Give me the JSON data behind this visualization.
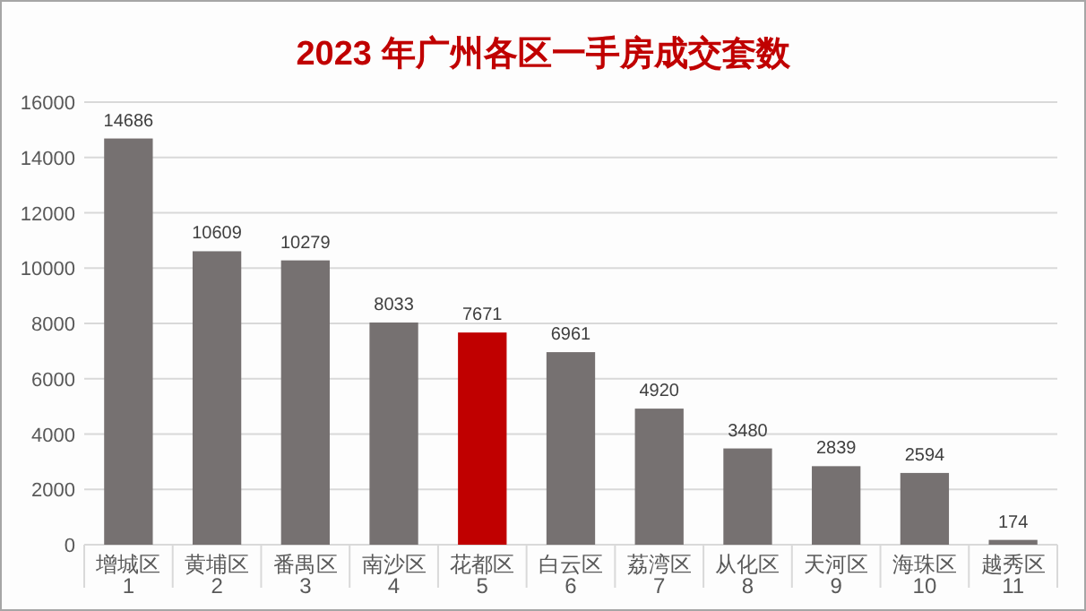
{
  "chart_data": {
    "type": "bar",
    "title": "2023 年广州各区一手房成交套数",
    "categories": [
      "增城区\n1",
      "黄埔区\n2",
      "番禺区\n3",
      "南沙区\n4",
      "花都区\n5",
      "白云区\n6",
      "荔湾区\n7",
      "从化区\n8",
      "天河区\n9",
      "海珠区\n10",
      "越秀区\n11"
    ],
    "values": [
      14686,
      10609,
      10279,
      8033,
      7671,
      6961,
      4920,
      3480,
      2839,
      2594,
      174
    ],
    "colors": [
      "#767171",
      "#767171",
      "#767171",
      "#767171",
      "#c00000",
      "#767171",
      "#767171",
      "#767171",
      "#767171",
      "#767171",
      "#767171"
    ],
    "ylim": [
      0,
      16000
    ],
    "yticks": [
      0,
      2000,
      4000,
      6000,
      8000,
      10000,
      12000,
      14000,
      16000
    ],
    "grid": "y",
    "data_labels": true
  }
}
